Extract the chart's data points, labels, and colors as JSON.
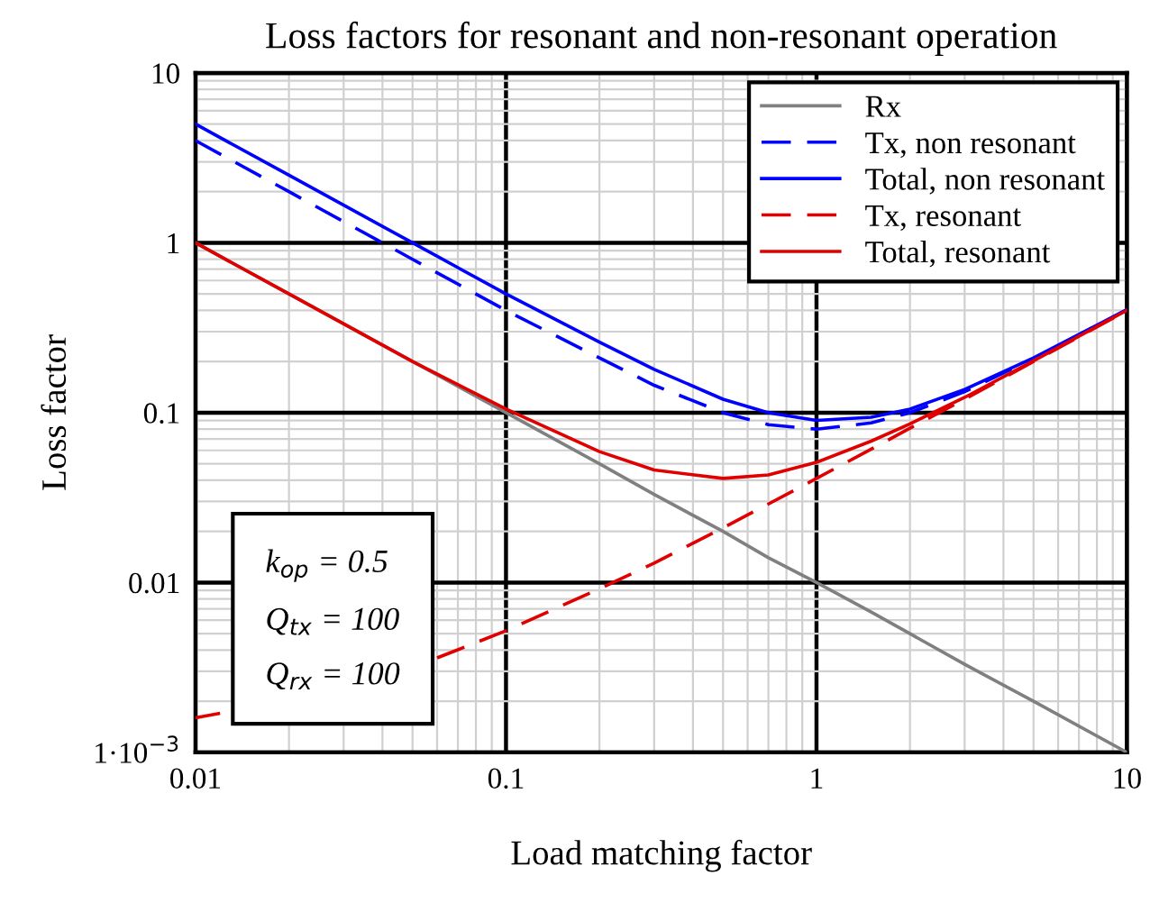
{
  "chart_data": {
    "type": "line",
    "title": "Loss factors for resonant and non-resonant operation",
    "xlabel": "Load matching factor",
    "ylabel": "Loss factor",
    "x": [
      0.01,
      0.02,
      0.05,
      0.1,
      0.2,
      0.3,
      0.5,
      0.7,
      1,
      1.5,
      2,
      3,
      5,
      10
    ],
    "series": [
      {
        "name": "Rx",
        "color": "#808080",
        "line_style": "solid",
        "values": [
          1,
          0.5,
          0.2,
          0.1,
          0.05,
          0.033,
          0.02,
          0.014,
          0.01,
          0.0067,
          0.005,
          0.0033,
          0.002,
          0.001
        ]
      },
      {
        "name": "Tx, non resonant",
        "color": "#0000ff",
        "line_style": "dashed",
        "values": [
          4.0,
          2.0,
          0.8,
          0.4,
          0.21,
          0.145,
          0.1,
          0.085,
          0.08,
          0.087,
          0.1,
          0.133,
          0.208,
          0.404
        ]
      },
      {
        "name": "Total, non resonant",
        "color": "#0000ff",
        "line_style": "solid",
        "values": [
          5.0,
          2.5,
          1.0,
          0.5,
          0.26,
          0.18,
          0.12,
          0.1,
          0.09,
          0.094,
          0.105,
          0.137,
          0.21,
          0.405
        ]
      },
      {
        "name": "Tx, resonant",
        "color": "#e00000",
        "line_style": "dashed",
        "x": [
          0.01,
          0.012,
          0.03,
          0.06,
          0.1,
          0.2,
          0.3,
          0.5,
          0.7,
          1,
          1.5,
          2,
          3,
          5,
          10
        ],
        "values": [
          0.0016,
          0.0017,
          null,
          0.0036,
          0.0052,
          0.0092,
          0.013,
          0.021,
          0.029,
          0.041,
          0.061,
          0.081,
          0.12,
          0.2,
          0.4
        ]
      },
      {
        "name": "Total, resonant",
        "color": "#e00000",
        "line_style": "solid",
        "values": [
          1.0,
          0.5,
          0.2,
          0.105,
          0.059,
          0.046,
          0.041,
          0.043,
          0.051,
          0.068,
          0.086,
          0.123,
          0.202,
          0.401
        ]
      }
    ],
    "log": "xy",
    "xlim": [
      0.01,
      10
    ],
    "ylim": [
      0.001,
      10
    ],
    "xticks": [
      0.01,
      0.1,
      1,
      10
    ],
    "yticks": [
      {
        "value": 0.001,
        "label": "1·10$^{−3}$"
      },
      0.01,
      0.1,
      1,
      10
    ],
    "grid": true,
    "legend": "top right",
    "marker": "none",
    "annotations": [
      "k$_{op}$ = 0.5",
      "Q$_{tx}$ = 100",
      "Q$_{rx}$ = 100"
    ]
  }
}
